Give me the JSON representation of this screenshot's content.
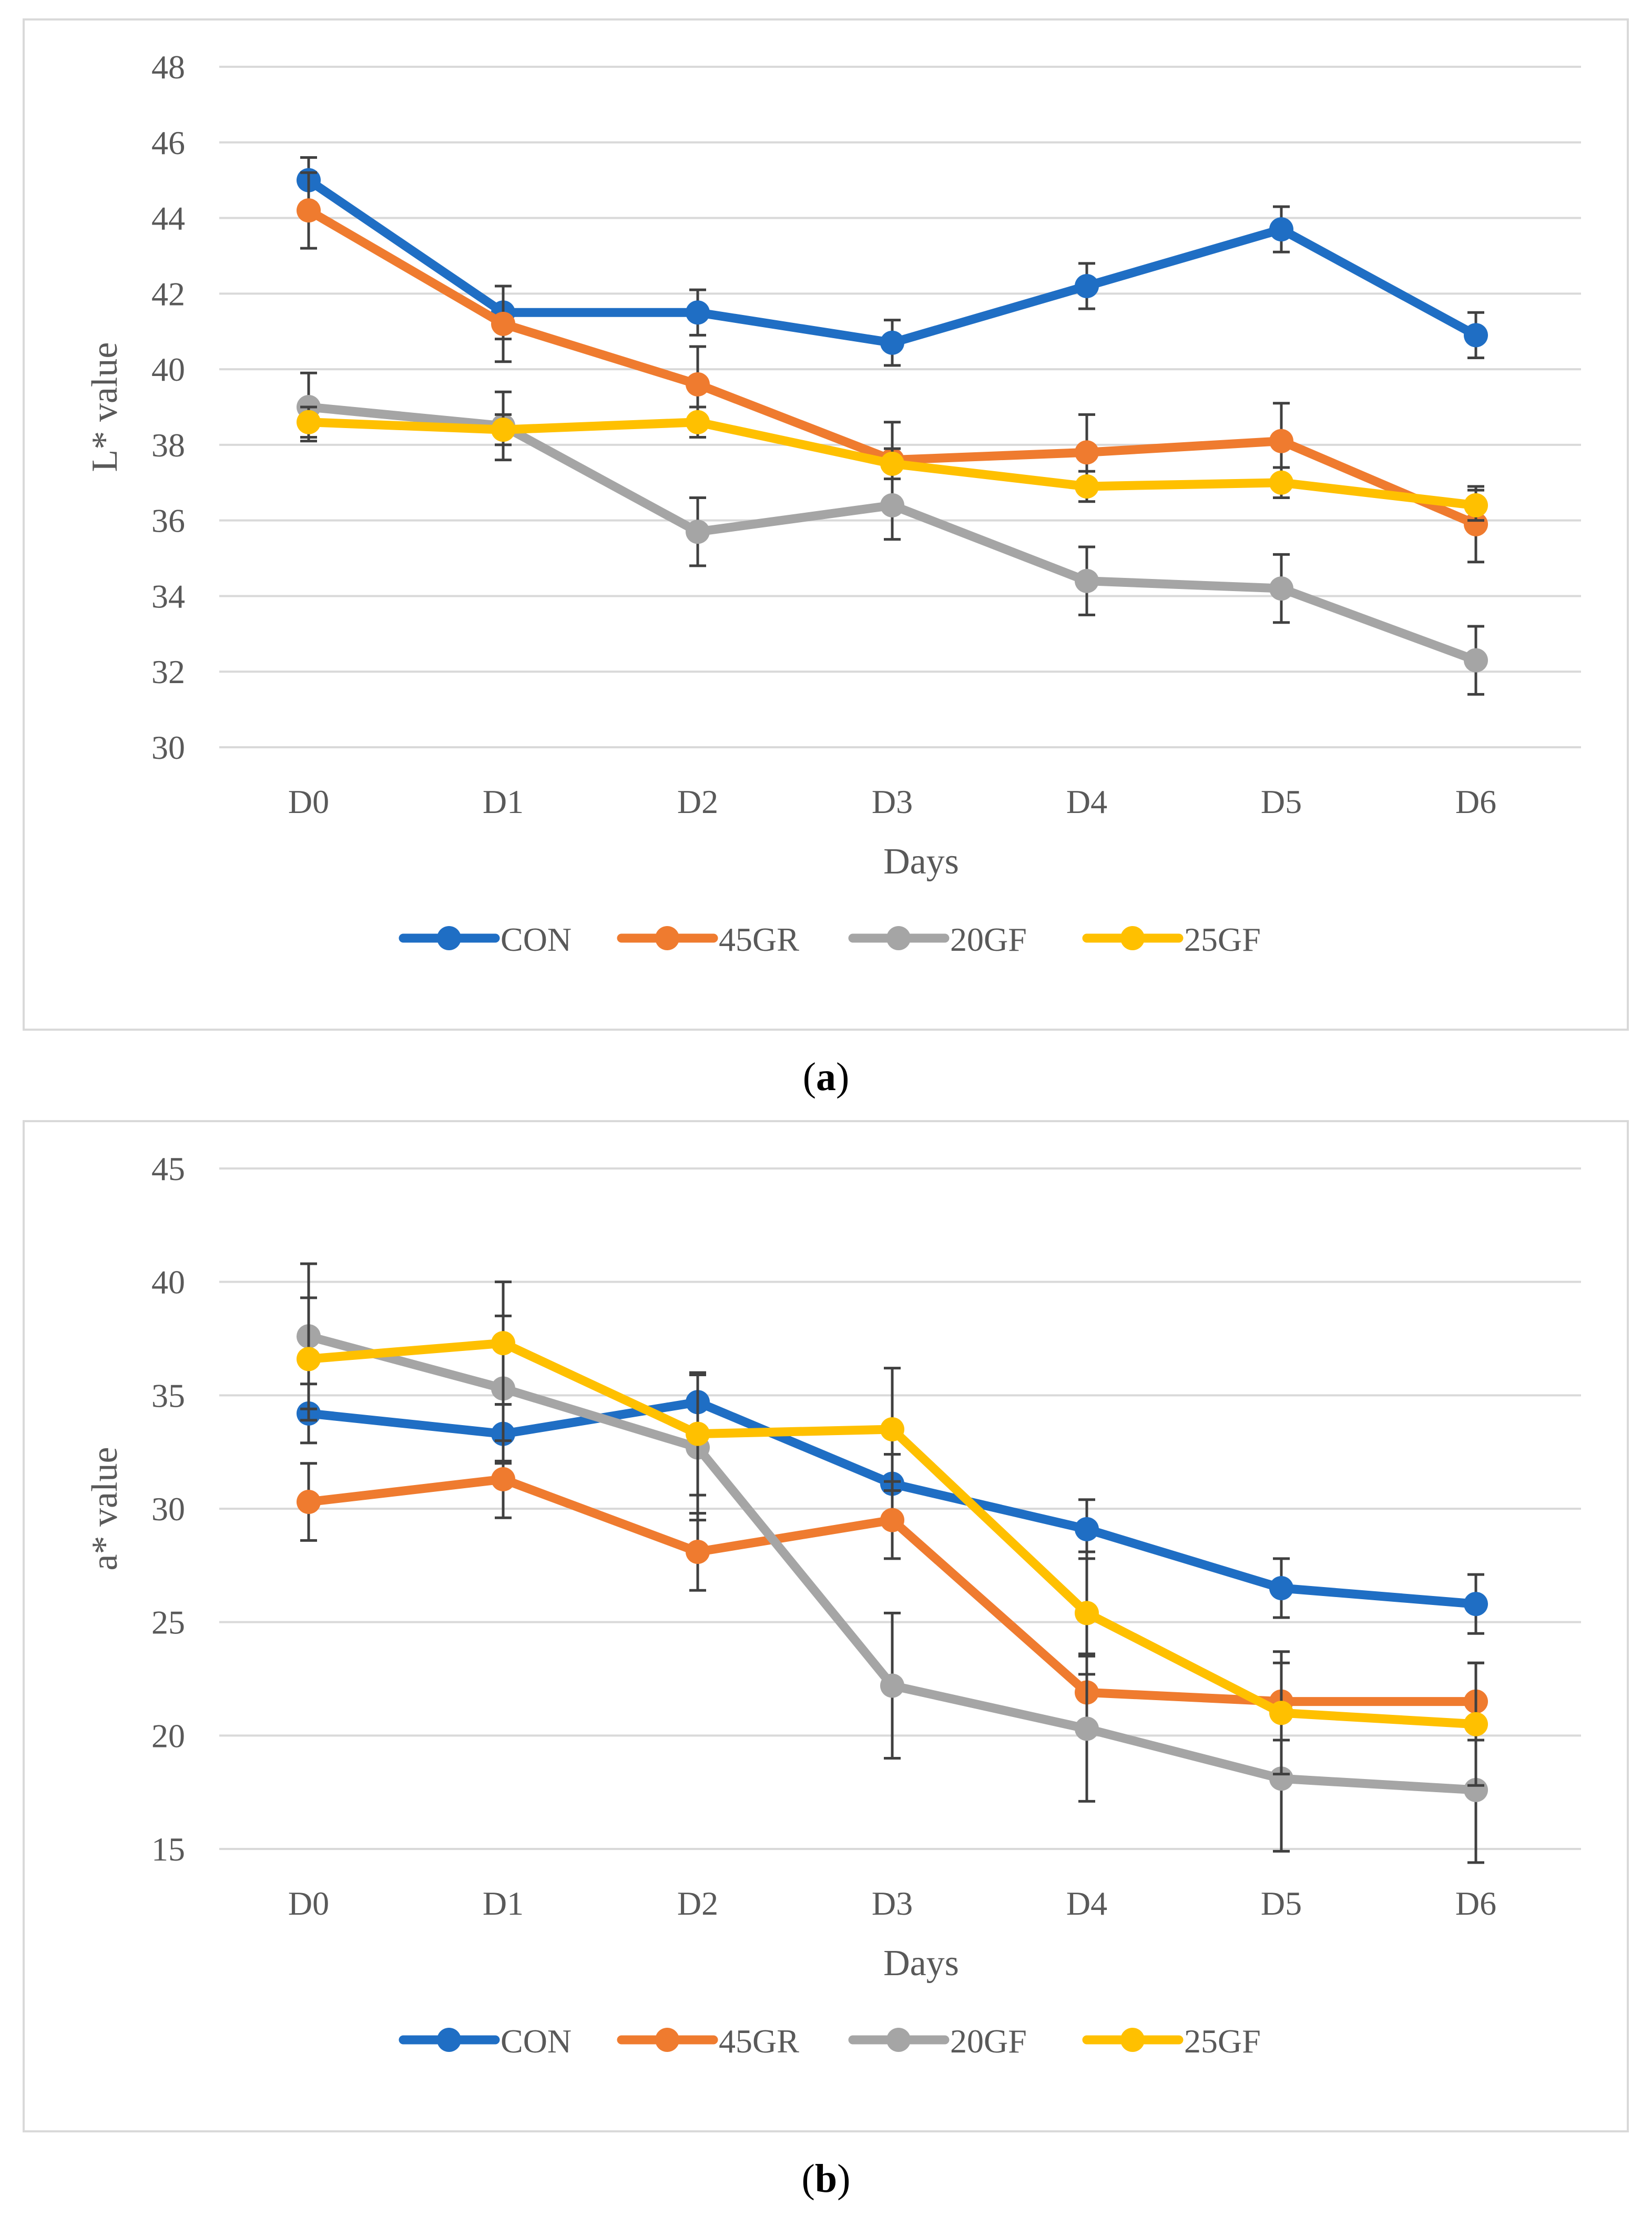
{
  "colors": {
    "CON": "#1f6ec4",
    "45GR": "#ef7b2f",
    "20GF": "#a5a5a5",
    "25GF": "#ffc000",
    "grid": "#d9d9d9",
    "text": "#595959",
    "errorbar": "#404040"
  },
  "chart_data": [
    {
      "type": "line",
      "panel": "a",
      "caption_letter": "a",
      "ylabel": "L* value",
      "xlabel": "Days",
      "categories": [
        "D0",
        "D1",
        "D2",
        "D3",
        "D4",
        "D5",
        "D6"
      ],
      "ylim": [
        30,
        48
      ],
      "yticks": [
        30,
        32,
        34,
        36,
        38,
        40,
        42,
        44,
        46,
        48
      ],
      "grid": true,
      "legend_position": "bottom",
      "series": [
        {
          "name": "CON",
          "values": [
            45.0,
            41.5,
            41.5,
            40.7,
            42.2,
            43.7,
            40.9
          ],
          "errors": [
            0.6,
            0.7,
            0.6,
            0.6,
            0.6,
            0.6,
            0.6
          ]
        },
        {
          "name": "45GR",
          "values": [
            44.2,
            41.2,
            39.6,
            37.6,
            37.8,
            38.1,
            35.9
          ],
          "errors": [
            1.0,
            1.0,
            1.0,
            1.0,
            1.0,
            1.0,
            1.0
          ]
        },
        {
          "name": "20GF",
          "values": [
            39.0,
            38.5,
            35.7,
            36.4,
            34.4,
            34.2,
            32.3
          ],
          "errors": [
            0.9,
            0.9,
            0.9,
            0.9,
            0.9,
            0.9,
            0.9
          ]
        },
        {
          "name": "25GF",
          "values": [
            38.6,
            38.4,
            38.6,
            37.5,
            36.9,
            37.0,
            36.4
          ],
          "errors": [
            0.4,
            0.4,
            0.4,
            0.4,
            0.4,
            0.4,
            0.4
          ]
        }
      ]
    },
    {
      "type": "line",
      "panel": "b",
      "caption_letter": "b",
      "ylabel": "a* value",
      "xlabel": "Days",
      "categories": [
        "D0",
        "D1",
        "D2",
        "D3",
        "D4",
        "D5",
        "D6"
      ],
      "ylim": [
        15,
        45
      ],
      "yticks": [
        15,
        20,
        25,
        30,
        35,
        40,
        45
      ],
      "grid": true,
      "legend_position": "bottom",
      "series": [
        {
          "name": "CON",
          "values": [
            34.2,
            33.3,
            34.7,
            31.1,
            29.1,
            26.5,
            25.8
          ],
          "errors": [
            1.3,
            1.3,
            1.3,
            1.3,
            1.3,
            1.3,
            1.3
          ]
        },
        {
          "name": "45GR",
          "values": [
            30.3,
            31.3,
            28.1,
            29.5,
            21.9,
            21.5,
            21.5
          ],
          "errors": [
            1.7,
            1.7,
            1.7,
            1.7,
            1.7,
            1.7,
            1.7
          ]
        },
        {
          "name": "20GF",
          "values": [
            37.6,
            35.3,
            32.7,
            22.2,
            20.3,
            18.1,
            17.6
          ],
          "errors": [
            3.2,
            3.2,
            3.2,
            3.2,
            3.2,
            3.2,
            3.2
          ]
        },
        {
          "name": "25GF",
          "values": [
            36.6,
            37.3,
            33.3,
            33.5,
            25.4,
            21.0,
            20.5
          ],
          "errors": [
            2.7,
            2.7,
            2.7,
            2.7,
            2.7,
            2.7,
            2.7
          ]
        }
      ]
    }
  ]
}
